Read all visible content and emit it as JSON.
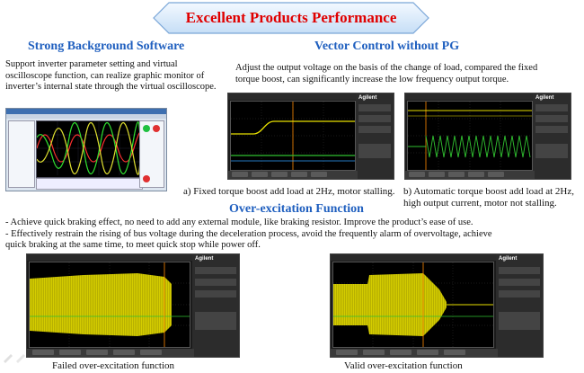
{
  "title": "Excellent Products Performance",
  "sections": {
    "software": {
      "heading": "Strong Background Software",
      "lines": [
        "Support inverter parameter setting and virtual",
        "oscilloscope function, can realize graphic monitor of",
        "inverter’s internal state through the virtual oscilloscope."
      ]
    },
    "vector": {
      "heading": "Vector Control without PG",
      "lines": [
        "Adjust the output voltage on the basis of  the change of load, compared the fixed",
        "torque boost, can significantly increase the low frequency output torque."
      ],
      "caption_a": "a) Fixed torque boost add load at 2Hz, motor stalling.",
      "caption_b_lines": [
        "b) Automatic torque boost add load at 2Hz,",
        "high output current, motor not stalling."
      ]
    },
    "overexcitation": {
      "heading": "Over-excitation Function",
      "lines": [
        "- Achieve quick braking effect, no need to add any external module, like braking resistor. Improve the product’s ease of use.",
        "- Effectively restrain the rising of bus voltage during the deceleration process,  avoid the frequently alarm of overvoltage, achieve",
        "quick braking at the same time, to meet quick stop while power off."
      ],
      "caption_failed": "Failed over-excitation function",
      "caption_valid": "Valid over-excitation function"
    }
  },
  "scope": {
    "brand": "Agilent"
  },
  "colors": {
    "title_red": "#e00000",
    "heading_blue": "#1f5fbf",
    "banner_fill": "#dcecfb",
    "scope_yellow": "#e8e000",
    "scope_green": "#30c030",
    "scope_orange": "#ff8a00"
  },
  "icons": {
    "banner": "double-arrow-banner-shape",
    "pen": "pen-icon"
  }
}
